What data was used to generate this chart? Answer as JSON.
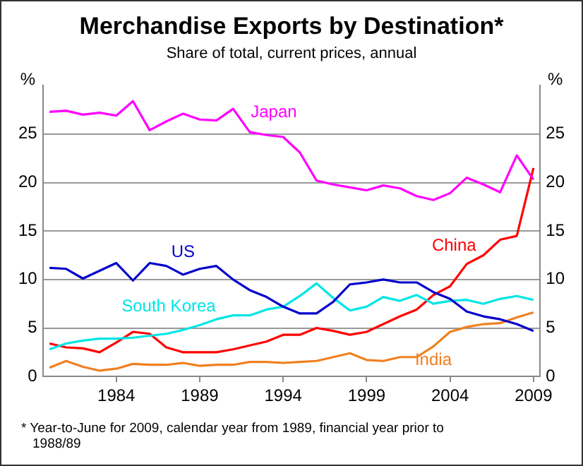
{
  "chart_data": {
    "type": "line",
    "title": "Merchandise Exports by Destination*",
    "subtitle": "Share of total, current prices, annual",
    "ylabel": "%",
    "y2label": "%",
    "x": [
      1980,
      1981,
      1982,
      1983,
      1984,
      1985,
      1986,
      1987,
      1988,
      1989,
      1990,
      1991,
      1992,
      1993,
      1994,
      1995,
      1996,
      1997,
      1998,
      1999,
      2000,
      2001,
      2002,
      2003,
      2004,
      2005,
      2006,
      2007,
      2008,
      2009
    ],
    "xlim": [
      1979.6,
      2009.4
    ],
    "xticks": [
      1984,
      1989,
      1994,
      1999,
      2004,
      2009
    ],
    "ylim": [
      0,
      30
    ],
    "yticks": [
      0,
      5,
      10,
      15,
      20,
      25
    ],
    "y2lim": [
      0,
      30
    ],
    "y2ticks": [
      0,
      5,
      10,
      15,
      20,
      25
    ],
    "grid": "y",
    "legend": false,
    "marker": "none",
    "line_style": "solid",
    "series": [
      {
        "name": "Japan",
        "color": "#ff00ff",
        "values": [
          27.3,
          27.4,
          27.0,
          27.2,
          26.9,
          28.4,
          25.4,
          26.3,
          27.1,
          26.5,
          26.4,
          27.6,
          25.2,
          24.9,
          24.7,
          23.1,
          20.2,
          19.8,
          19.5,
          19.2,
          19.7,
          19.4,
          18.6,
          18.2,
          18.9,
          20.5,
          19.8,
          19.0,
          22.8,
          20.3
        ]
      },
      {
        "name": "US",
        "color": "#0000cc",
        "values": [
          11.2,
          11.1,
          10.1,
          10.9,
          11.7,
          9.9,
          11.7,
          11.4,
          10.5,
          11.1,
          11.4,
          10.0,
          8.9,
          8.2,
          7.2,
          6.5,
          6.5,
          7.7,
          9.5,
          9.7,
          10.0,
          9.7,
          9.7,
          8.7,
          8.0,
          6.7,
          6.2,
          5.9,
          5.4,
          4.7
        ]
      },
      {
        "name": "South Korea",
        "color": "#00e5e5",
        "values": [
          2.8,
          3.4,
          3.7,
          3.9,
          3.9,
          4.0,
          4.2,
          4.4,
          4.8,
          5.3,
          5.9,
          6.3,
          6.3,
          6.9,
          7.2,
          8.3,
          9.6,
          8.1,
          6.8,
          7.2,
          8.2,
          7.8,
          8.4,
          7.5,
          7.8,
          7.9,
          7.5,
          8.0,
          8.3,
          7.9
        ]
      },
      {
        "name": "China",
        "color": "#ff0000",
        "values": [
          3.4,
          3.0,
          2.9,
          2.5,
          3.5,
          4.6,
          4.4,
          3.0,
          2.5,
          2.5,
          2.5,
          2.8,
          3.2,
          3.6,
          4.3,
          4.3,
          5.0,
          4.7,
          4.3,
          4.6,
          5.4,
          6.2,
          6.9,
          8.4,
          9.3,
          11.6,
          12.5,
          14.1,
          14.5,
          21.5
        ]
      },
      {
        "name": "India",
        "color": "#f08020",
        "values": [
          0.9,
          1.6,
          1.0,
          0.6,
          0.8,
          1.3,
          1.2,
          1.2,
          1.4,
          1.1,
          1.2,
          1.2,
          1.5,
          1.5,
          1.4,
          1.5,
          1.6,
          2.0,
          2.4,
          1.7,
          1.6,
          2.0,
          2.0,
          3.1,
          4.6,
          5.1,
          5.4,
          5.5,
          6.1,
          6.6
        ]
      }
    ],
    "annotations": [
      "* Year-to-June for 2009, calendar year from 1989, financial year prior to 1988/89"
    ]
  }
}
